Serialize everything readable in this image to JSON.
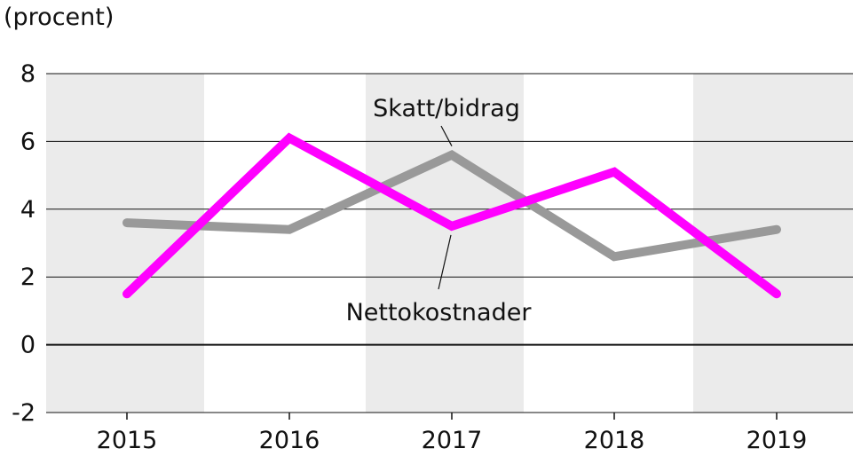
{
  "chart_data": {
    "type": "line",
    "ylabel": "(procent)",
    "x": [
      "2015",
      "2016",
      "2017",
      "2018",
      "2019"
    ],
    "y_ticks": [
      "8",
      "6",
      "4",
      "2",
      "0",
      "-2"
    ],
    "ylim": [
      -2,
      8
    ],
    "grid": true,
    "series": [
      {
        "name": "Skatt/bidrag",
        "values": [
          3.6,
          3.4,
          5.6,
          2.6,
          3.4
        ],
        "color": "#999999"
      },
      {
        "name": "Nettokostnader",
        "values": [
          1.5,
          6.1,
          3.5,
          5.1,
          1.5
        ],
        "color": "#ff00ff"
      }
    ]
  }
}
